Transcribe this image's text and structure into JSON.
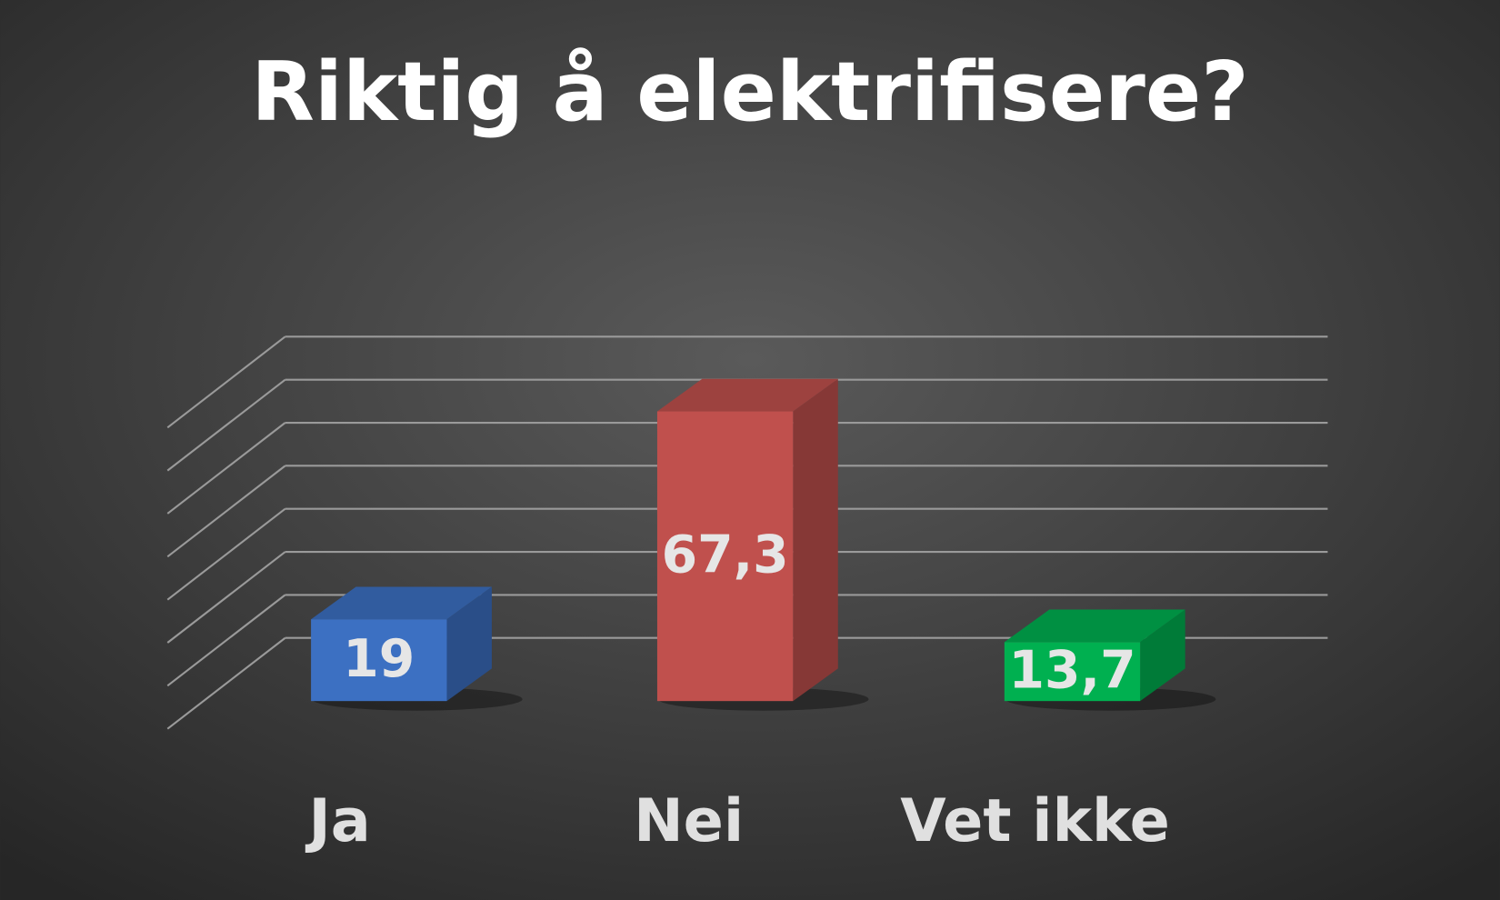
{
  "chart_data": {
    "type": "bar3d",
    "title": "Riktig å elektrifisere?",
    "categories": [
      "Ja",
      "Nei",
      "Vet ikke"
    ],
    "values": [
      19,
      67.3,
      13.7
    ],
    "value_labels": [
      "19",
      "67,3",
      "13,7"
    ],
    "colors": [
      "#3c70c2",
      "#c0504d",
      "#00b050"
    ],
    "ylim": [
      0,
      70
    ],
    "yticks": [
      0,
      10,
      20,
      30,
      40,
      50,
      60,
      70
    ],
    "grid": true
  }
}
